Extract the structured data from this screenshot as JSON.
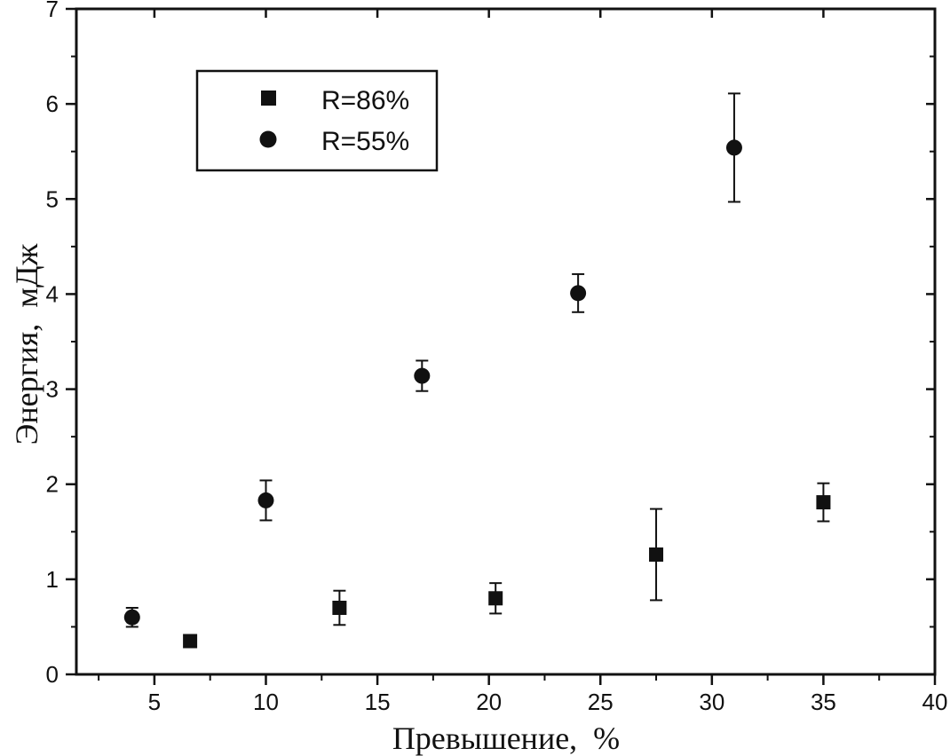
{
  "chart_data": {
    "type": "scatter",
    "title": "",
    "xlabel": "Превышение,  %",
    "ylabel": "Энергия,  мДж",
    "xlim": [
      1.5,
      40
    ],
    "ylim": [
      0,
      7
    ],
    "xticks": [
      5,
      10,
      15,
      20,
      25,
      30,
      35,
      40
    ],
    "yticks": [
      0,
      1,
      2,
      3,
      4,
      5,
      6,
      7
    ],
    "x_minor_step": 2.5,
    "y_minor_step": 0.5,
    "grid": false,
    "legend_position": "top-left",
    "series": [
      {
        "name": "R=86%",
        "marker": "square",
        "color": "#111111",
        "points": [
          {
            "x": 6.6,
            "y": 0.35,
            "err": 0.06
          },
          {
            "x": 13.3,
            "y": 0.7,
            "err": 0.18
          },
          {
            "x": 20.3,
            "y": 0.8,
            "err": 0.16
          },
          {
            "x": 27.5,
            "y": 1.26,
            "err": 0.48
          },
          {
            "x": 35.0,
            "y": 1.81,
            "err": 0.2
          }
        ]
      },
      {
        "name": "R=55%",
        "marker": "circle",
        "color": "#111111",
        "points": [
          {
            "x": 4.0,
            "y": 0.6,
            "err": 0.1
          },
          {
            "x": 10.0,
            "y": 1.83,
            "err": 0.21
          },
          {
            "x": 17.0,
            "y": 3.14,
            "err": 0.16
          },
          {
            "x": 24.0,
            "y": 4.01,
            "err": 0.2
          },
          {
            "x": 31.0,
            "y": 5.54,
            "err": 0.57
          }
        ]
      }
    ]
  }
}
